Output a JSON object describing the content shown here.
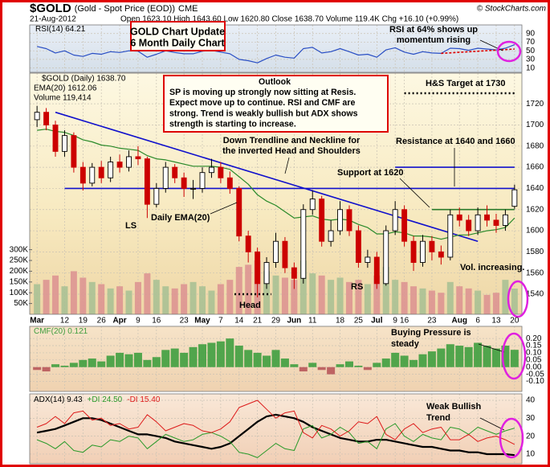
{
  "header": {
    "symbol": "$GOLD",
    "name": "(Gold - Spot Price (EOD))",
    "exchange": "CME",
    "date": "21-Aug-2012",
    "quote": "Open 1623.10 High 1643.60 Low 1620.80 Close 1638.70 Volume 119.4K Chg +16.10 (+0.99%)",
    "credit": "© StockCharts.com"
  },
  "annotations": [
    {
      "lines": [
        "GOLD Chart Update",
        "6 Month Daily Chart"
      ]
    },
    {
      "lines": [
        "RSI at 64% shows up",
        "momentum rising"
      ]
    },
    {
      "lines": [
        "Outlook",
        "SP is moving up strongly now sitting at Resis.",
        "Expect move up to continue. RSI and CMF are",
        "strong. Trend is weakly bullish but ADX shows",
        "strength is starting to increase."
      ]
    },
    {
      "lines": [
        "H&S Target at 1730"
      ]
    },
    {
      "lines": [
        "Down Trendline and Neckline for",
        "the inverted Head and Shoulders"
      ]
    },
    {
      "lines": [
        "Resistance at 1640 and 1660"
      ]
    },
    {
      "lines": [
        "Support at 1620"
      ]
    },
    {
      "lines": [
        "Daily EMA(20)"
      ]
    },
    {
      "lines": [
        "LS"
      ]
    },
    {
      "lines": [
        "Head"
      ]
    },
    {
      "lines": [
        "RS"
      ]
    },
    {
      "lines": [
        "Vol. increasing."
      ]
    },
    {
      "lines": [
        "Buying Pressure is",
        "steady"
      ]
    },
    {
      "lines": [
        "Weak Bullish",
        "Trend"
      ]
    }
  ],
  "chart_data": [
    {
      "type": "line",
      "ylim": [
        0,
        110
      ],
      "yticks": [
        90,
        70,
        50,
        30,
        10
      ],
      "grid": true,
      "series": [
        {
          "name": "RSI(14) 64.21",
          "color": "#2a4fc4",
          "width": 1.2,
          "values": [
            60,
            55,
            45,
            50,
            40,
            37,
            44,
            42,
            48,
            46,
            50,
            49,
            35,
            42,
            50,
            46,
            43,
            43,
            49,
            51,
            47,
            43,
            30,
            27,
            22,
            32,
            40,
            35,
            33,
            55,
            58,
            45,
            48,
            55,
            48,
            40,
            42,
            35,
            52,
            57,
            47,
            42,
            48,
            45,
            44,
            56,
            55,
            51,
            56,
            54,
            52,
            56,
            64.21
          ]
        }
      ],
      "trendline": {
        "x": [
          44,
          52
        ],
        "y": [
          44,
          54
        ],
        "color": "#dd0000"
      }
    },
    {
      "type": "candlestick",
      "ylim": [
        1521,
        1749
      ],
      "yticks": [
        1540,
        1560,
        1580,
        1600,
        1620,
        1640,
        1660,
        1680,
        1700,
        1720
      ],
      "grid": true,
      "categories": [
        "Mar",
        null,
        null,
        "12",
        null,
        "19",
        null,
        "26",
        null,
        "Apr",
        null,
        "9",
        null,
        "16",
        null,
        null,
        "23",
        null,
        "May",
        null,
        "7",
        null,
        "14",
        null,
        "21",
        null,
        "29",
        null,
        "Jun",
        null,
        "11",
        null,
        null,
        "18",
        null,
        "25",
        null,
        "Jul",
        null,
        "9",
        "16",
        null,
        null,
        "23",
        null,
        null,
        "Aug",
        null,
        "6",
        null,
        "13",
        null,
        "20"
      ],
      "series": [
        {
          "name": "$GOLD (Daily) 1638.70",
          "up_color": "#000000",
          "down_color": "#cc0000",
          "open": [
            1705,
            1712,
            1700,
            1675,
            1690,
            1660,
            1645,
            1660,
            1650,
            1665,
            1660,
            1670,
            1668,
            1625,
            1640,
            1660,
            1650,
            1640,
            1640,
            1655,
            1660,
            1650,
            1640,
            1595,
            1580,
            1550,
            1570,
            1590,
            1565,
            1555,
            1620,
            1630,
            1590,
            1600,
            1620,
            1600,
            1570,
            1575,
            1550,
            1600,
            1620,
            1590,
            1570,
            1590,
            1580,
            1575,
            1615,
            1610,
            1600,
            1615,
            1610,
            1605,
            1623.1
          ],
          "high": [
            1718,
            1716,
            1704,
            1695,
            1693,
            1665,
            1664,
            1666,
            1670,
            1672,
            1676,
            1680,
            1670,
            1645,
            1665,
            1663,
            1655,
            1648,
            1660,
            1668,
            1665,
            1656,
            1642,
            1600,
            1584,
            1575,
            1598,
            1594,
            1570,
            1625,
            1638,
            1633,
            1610,
            1628,
            1624,
            1605,
            1582,
            1580,
            1605,
            1628,
            1624,
            1595,
            1596,
            1595,
            1586,
            1620,
            1622,
            1615,
            1622,
            1624,
            1616,
            1620,
            1643.6
          ],
          "low": [
            1698,
            1695,
            1670,
            1670,
            1655,
            1638,
            1642,
            1645,
            1646,
            1655,
            1656,
            1662,
            1612,
            1622,
            1636,
            1645,
            1632,
            1630,
            1636,
            1650,
            1645,
            1635,
            1590,
            1570,
            1537,
            1545,
            1565,
            1560,
            1545,
            1550,
            1615,
            1585,
            1585,
            1596,
            1595,
            1565,
            1565,
            1545,
            1548,
            1596,
            1585,
            1562,
            1566,
            1572,
            1568,
            1572,
            1604,
            1595,
            1596,
            1604,
            1598,
            1600,
            1620.8
          ],
          "close": [
            1712,
            1700,
            1675,
            1690,
            1660,
            1645,
            1660,
            1650,
            1665,
            1660,
            1670,
            1668,
            1625,
            1640,
            1660,
            1650,
            1640,
            1640,
            1655,
            1660,
            1650,
            1640,
            1595,
            1580,
            1550,
            1570,
            1590,
            1565,
            1555,
            1620,
            1630,
            1590,
            1600,
            1620,
            1600,
            1570,
            1575,
            1550,
            1600,
            1620,
            1590,
            1570,
            1590,
            1580,
            1575,
            1615,
            1610,
            1600,
            1615,
            1610,
            1605,
            1615,
            1638.7
          ]
        },
        {
          "name": "EMA(20) 1612.06",
          "color": "#2a8a2a",
          "width": 1.2,
          "values": [
            1695,
            1696,
            1694,
            1693,
            1690,
            1686,
            1684,
            1681,
            1680,
            1678,
            1677,
            1676,
            1671,
            1668,
            1667,
            1665,
            1663,
            1661,
            1661,
            1661,
            1660,
            1658,
            1651,
            1644,
            1634,
            1628,
            1624,
            1618,
            1612,
            1613,
            1614,
            1611,
            1610,
            1611,
            1610,
            1606,
            1603,
            1597,
            1597,
            1599,
            1598,
            1595,
            1595,
            1594,
            1592,
            1594,
            1596,
            1596,
            1598,
            1600,
            1601,
            1603,
            1612.06
          ]
        }
      ],
      "volume": {
        "name": "Volume 119,414",
        "color": "#7a9a6a",
        "up_color": "#a6bf93",
        "down_color": "#dc9090",
        "ylim": [
          0,
          1120000
        ],
        "yticks": [
          {
            "value": 50000,
            "label": "50K"
          },
          {
            "value": 100000,
            "label": "100K"
          },
          {
            "value": 150000,
            "label": "150K"
          },
          {
            "value": 200000,
            "label": "200K"
          },
          {
            "value": 250000,
            "label": "250K"
          },
          {
            "value": 300000,
            "label": "300K"
          }
        ],
        "values": [
          140000,
          160000,
          180000,
          130000,
          200000,
          170000,
          150000,
          140000,
          120000,
          130000,
          110000,
          150000,
          190000,
          160000,
          130000,
          120000,
          140000,
          150000,
          130000,
          110000,
          140000,
          160000,
          220000,
          230000,
          250000,
          200000,
          180000,
          170000,
          160000,
          250000,
          190000,
          180000,
          160000,
          170000,
          150000,
          160000,
          140000,
          180000,
          220000,
          160000,
          150000,
          130000,
          120000,
          110000,
          100000,
          150000,
          130000,
          120000,
          110000,
          90000,
          100000,
          160000,
          119414
        ]
      },
      "lines": [
        {
          "value": 1640,
          "x": [
            3,
            52
          ],
          "color": "#1010cc"
        },
        {
          "value": 1660,
          "x": [
            39,
            52
          ],
          "color": "#1010cc"
        },
        {
          "value": 1620,
          "x": [
            43,
            52
          ],
          "color": "#2a7a2a"
        },
        {
          "value": 1730,
          "x": [
            40,
            52
          ],
          "color": "#000000",
          "style": "dotted"
        },
        {
          "value": 1540,
          "x": [
            21.5,
            25.5
          ],
          "color": "#000000",
          "style": "dotted"
        }
      ],
      "trendline": {
        "x": [
          2,
          48
        ],
        "y": [
          1712,
          1590
        ],
        "color": "#1010cc"
      }
    },
    {
      "type": "bar",
      "ylim": [
        -0.17,
        0.285
      ],
      "grid": true,
      "yticks": [
        {
          "value": 0.2,
          "label": "0.20"
        },
        {
          "value": 0.15,
          "label": "0.15"
        },
        {
          "value": 0.1,
          "label": "0.10"
        },
        {
          "value": 0.05,
          "label": "0.05"
        },
        {
          "value": 0,
          "label": "0.00"
        },
        {
          "value": -0.05,
          "label": "-0.05"
        },
        {
          "value": -0.1,
          "label": "-0.10"
        }
      ],
      "series": [
        {
          "name": "CMF(20) 0.121",
          "color": "#3f9e3f",
          "negative_color": "#b8585a",
          "values": [
            -0.02,
            -0.03,
            0.02,
            0.01,
            0.03,
            0.05,
            0.06,
            0.04,
            0.08,
            0.1,
            0.09,
            0.1,
            0.05,
            0.07,
            0.12,
            0.13,
            0.1,
            0.14,
            0.16,
            0.17,
            0.18,
            0.2,
            0.15,
            0.12,
            0.1,
            0.08,
            0.12,
            0.06,
            0.02,
            -0.03,
            0.03,
            -0.02,
            -0.05,
            0.02,
            0.04,
            0.01,
            -0.02,
            0.03,
            0.06,
            0.1,
            0.08,
            0.05,
            0.09,
            0.11,
            0.13,
            0.16,
            0.15,
            0.14,
            0.17,
            0.15,
            0.13,
            0.15,
            0.121
          ]
        }
      ]
    },
    {
      "type": "line",
      "ylim": [
        4.6,
        43.6
      ],
      "yticks": [
        40,
        30,
        20,
        10
      ],
      "grid": true,
      "series": [
        {
          "name": "ADX(14) 9.43",
          "color": "#000000",
          "width": 2.2,
          "values": [
            22,
            23,
            24,
            26,
            28,
            30,
            30,
            29,
            27,
            25,
            23,
            21,
            21,
            20,
            19,
            17,
            16,
            15,
            14,
            13,
            14,
            16,
            20,
            24,
            28,
            31,
            32,
            31,
            30,
            28,
            25,
            23,
            21,
            19,
            18,
            17,
            17,
            18,
            18,
            17,
            16,
            15,
            14,
            14,
            13,
            12,
            12,
            11,
            11,
            10,
            10,
            10,
            9.43
          ]
        },
        {
          "name": "+DI 24.50",
          "color": "#2a9a2a",
          "width": 1,
          "values": [
            18,
            16,
            13,
            17,
            12,
            11,
            15,
            14,
            18,
            17,
            20,
            19,
            13,
            17,
            21,
            19,
            17,
            18,
            21,
            22,
            20,
            17,
            11,
            10,
            8,
            12,
            16,
            13,
            12,
            24,
            26,
            19,
            21,
            25,
            22,
            16,
            17,
            13,
            24,
            27,
            20,
            17,
            21,
            19,
            18,
            25,
            24,
            21,
            25,
            23,
            21,
            23,
            24.5
          ]
        },
        {
          "name": "-DI 15.40",
          "color": "#dd1a1a",
          "width": 1,
          "values": [
            25,
            27,
            31,
            27,
            33,
            34,
            29,
            30,
            26,
            27,
            24,
            25,
            32,
            28,
            23,
            25,
            27,
            26,
            23,
            22,
            24,
            28,
            36,
            38,
            40,
            35,
            30,
            33,
            34,
            22,
            19,
            26,
            24,
            20,
            23,
            28,
            27,
            31,
            21,
            18,
            24,
            27,
            22,
            24,
            25,
            18,
            18,
            21,
            17,
            19,
            20,
            18,
            15.4
          ]
        }
      ]
    }
  ]
}
